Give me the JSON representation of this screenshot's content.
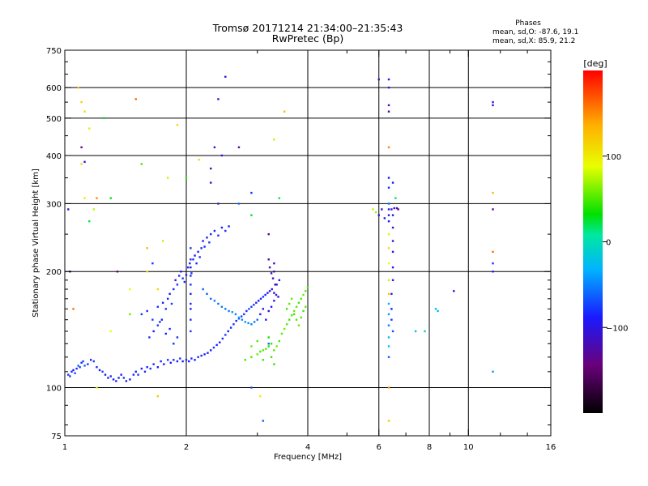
{
  "title_line1": "Tromsø 20171214 21:34:00–21:35:43",
  "title_line2": "RwPretec (Bp)",
  "stats": {
    "heading": "Phases",
    "line1": "mean, sd,O: -87.6, 19.1",
    "line2": "mean, sd,X:  85.9, 21.2"
  },
  "colorbar": {
    "title": "[deg]",
    "ticks": [
      {
        "value": 100,
        "label": "100"
      },
      {
        "value": 0,
        "label": "0"
      },
      {
        "value": -100,
        "label": "−100"
      }
    ],
    "range": [
      -200,
      200
    ]
  },
  "chart_data": {
    "type": "scatter",
    "xlabel": "Frequency [MHz]",
    "ylabel": "Stationary phase Virtual Height [km]",
    "x_scale": "log",
    "y_scale": "log",
    "xlim": [
      1,
      16
    ],
    "ylim": [
      75,
      750
    ],
    "grid": true,
    "xticks": [
      {
        "value": 1,
        "label": "1"
      },
      {
        "value": 2,
        "label": "2"
      },
      {
        "value": 4,
        "label": "4"
      },
      {
        "value": 6,
        "label": "6"
      },
      {
        "value": 8,
        "label": "8"
      },
      {
        "value": 10,
        "label": "10"
      },
      {
        "value": 16,
        "label": "16"
      }
    ],
    "x_minor_ticks": [
      3,
      5,
      7,
      9,
      12,
      14
    ],
    "x_gridlines": [
      2,
      4,
      6,
      8,
      10
    ],
    "yticks": [
      {
        "value": 75,
        "label": "75"
      },
      {
        "value": 100,
        "label": "100"
      },
      {
        "value": 200,
        "label": "200"
      },
      {
        "value": 300,
        "label": "300"
      },
      {
        "value": 400,
        "label": "400"
      },
      {
        "value": 500,
        "label": "500"
      },
      {
        "value": 600,
        "label": "600"
      },
      {
        "value": 750,
        "label": "750"
      }
    ],
    "y_minor_ticks": [
      80,
      90,
      110,
      120,
      130,
      140,
      150,
      160,
      170,
      180,
      190,
      250,
      350,
      450,
      550,
      650,
      700
    ],
    "y_gridlines": [
      100,
      200,
      300,
      400,
      500,
      600
    ],
    "color_scale": "phase in deg, rainbow from -200 (black) to 200 (red)",
    "points": [
      [
        1.02,
        108,
        -80
      ],
      [
        1.03,
        107,
        -75
      ],
      [
        1.04,
        110,
        -85
      ],
      [
        1.05,
        111,
        -90
      ],
      [
        1.06,
        109,
        -70
      ],
      [
        1.07,
        112,
        -80
      ],
      [
        1.08,
        114,
        -60
      ],
      [
        1.09,
        113,
        -75
      ],
      [
        1.1,
        116,
        -85
      ],
      [
        1.11,
        117,
        -70
      ],
      [
        1.12,
        114,
        -60
      ],
      [
        1.14,
        115,
        -80
      ],
      [
        1.16,
        118,
        -90
      ],
      [
        1.18,
        117,
        -75
      ],
      [
        1.2,
        113,
        -85
      ],
      [
        1.22,
        111,
        -90
      ],
      [
        1.24,
        110,
        -80
      ],
      [
        1.26,
        108,
        -95
      ],
      [
        1.28,
        106,
        -90
      ],
      [
        1.3,
        107,
        -85
      ],
      [
        1.32,
        105,
        -90
      ],
      [
        1.34,
        104,
        -100
      ],
      [
        1.36,
        106,
        -85
      ],
      [
        1.38,
        108,
        -90
      ],
      [
        1.4,
        106,
        -80
      ],
      [
        1.42,
        104,
        -95
      ],
      [
        1.45,
        105,
        -90
      ],
      [
        1.48,
        108,
        -85
      ],
      [
        1.5,
        110,
        -90
      ],
      [
        1.52,
        108,
        -80
      ],
      [
        1.55,
        112,
        -95
      ],
      [
        1.58,
        110,
        -85
      ],
      [
        1.6,
        113,
        -90
      ],
      [
        1.63,
        112,
        -80
      ],
      [
        1.66,
        115,
        -85
      ],
      [
        1.7,
        113,
        -90
      ],
      [
        1.73,
        117,
        -85
      ],
      [
        1.76,
        115,
        -95
      ],
      [
        1.8,
        118,
        -80
      ],
      [
        1.83,
        116,
        -90
      ],
      [
        1.86,
        118,
        -85
      ],
      [
        1.9,
        117,
        -90
      ],
      [
        1.93,
        119,
        -80
      ],
      [
        1.96,
        117,
        -90
      ],
      [
        2.0,
        118,
        -85
      ],
      [
        2.03,
        117,
        -90
      ],
      [
        2.06,
        119,
        -85
      ],
      [
        2.1,
        118,
        -90
      ],
      [
        2.14,
        120,
        -80
      ],
      [
        2.18,
        121,
        -85
      ],
      [
        2.22,
        122,
        -90
      ],
      [
        2.26,
        123,
        -85
      ],
      [
        2.3,
        125,
        -90
      ],
      [
        2.34,
        127,
        -80
      ],
      [
        2.38,
        129,
        -85
      ],
      [
        2.42,
        131,
        -90
      ],
      [
        2.46,
        134,
        -85
      ],
      [
        2.5,
        137,
        -80
      ],
      [
        2.54,
        140,
        -90
      ],
      [
        2.58,
        143,
        -85
      ],
      [
        2.62,
        146,
        -80
      ],
      [
        2.66,
        149,
        -90
      ],
      [
        2.7,
        151,
        -70
      ],
      [
        2.74,
        153,
        -75
      ],
      [
        2.78,
        155,
        -80
      ],
      [
        2.82,
        158,
        -85
      ],
      [
        2.86,
        160,
        -70
      ],
      [
        2.9,
        162,
        -75
      ],
      [
        2.94,
        164,
        -80
      ],
      [
        2.98,
        166,
        -85
      ],
      [
        3.02,
        168,
        -90
      ],
      [
        3.06,
        170,
        -85
      ],
      [
        3.1,
        172,
        -80
      ],
      [
        3.14,
        174,
        -90
      ],
      [
        3.18,
        176,
        -95
      ],
      [
        3.22,
        178,
        -100
      ],
      [
        3.26,
        180,
        -95
      ],
      [
        3.3,
        176,
        -100
      ],
      [
        3.34,
        174,
        -110
      ],
      [
        3.38,
        172,
        -105
      ],
      [
        1.55,
        155,
        -80
      ],
      [
        1.6,
        158,
        -85
      ],
      [
        1.65,
        150,
        -75
      ],
      [
        1.7,
        162,
        -80
      ],
      [
        1.72,
        148,
        -85
      ],
      [
        1.75,
        166,
        -90
      ],
      [
        1.78,
        160,
        -80
      ],
      [
        1.8,
        170,
        -85
      ],
      [
        1.82,
        175,
        -90
      ],
      [
        1.84,
        165,
        -80
      ],
      [
        1.86,
        180,
        -85
      ],
      [
        1.88,
        190,
        -90
      ],
      [
        1.9,
        185,
        -80
      ],
      [
        1.92,
        195,
        -85
      ],
      [
        1.94,
        200,
        -90
      ],
      [
        1.96,
        192,
        -80
      ],
      [
        1.98,
        188,
        -85
      ],
      [
        2.0,
        196,
        -90
      ],
      [
        2.02,
        205,
        -85
      ],
      [
        2.04,
        210,
        -90
      ],
      [
        2.06,
        198,
        -80
      ],
      [
        2.08,
        215,
        -85
      ],
      [
        2.1,
        220,
        -90
      ],
      [
        2.12,
        210,
        -85
      ],
      [
        2.14,
        225,
        -90
      ],
      [
        2.16,
        218,
        -80
      ],
      [
        2.18,
        230,
        -85
      ],
      [
        2.2,
        240,
        -90
      ],
      [
        2.22,
        232,
        -85
      ],
      [
        2.25,
        245,
        -90
      ],
      [
        2.28,
        238,
        -80
      ],
      [
        2.3,
        250,
        -85
      ],
      [
        2.35,
        255,
        -90
      ],
      [
        2.4,
        248,
        -85
      ],
      [
        2.45,
        260,
        -90
      ],
      [
        2.5,
        255,
        -85
      ],
      [
        2.55,
        262,
        -90
      ],
      [
        2.2,
        180,
        -60
      ],
      [
        2.25,
        175,
        -65
      ],
      [
        2.3,
        170,
        -60
      ],
      [
        2.35,
        168,
        -55
      ],
      [
        2.4,
        165,
        -60
      ],
      [
        2.45,
        162,
        -50
      ],
      [
        2.5,
        160,
        -55
      ],
      [
        2.55,
        158,
        -50
      ],
      [
        2.6,
        157,
        -45
      ],
      [
        2.65,
        155,
        -50
      ],
      [
        2.7,
        152,
        -40
      ],
      [
        2.75,
        150,
        -45
      ],
      [
        2.8,
        148,
        -40
      ],
      [
        2.85,
        147,
        -45
      ],
      [
        2.9,
        146,
        -50
      ],
      [
        2.95,
        148,
        -55
      ],
      [
        3.0,
        150,
        -60
      ],
      [
        2.05,
        165,
        -85
      ],
      [
        2.05,
        175,
        -90
      ],
      [
        2.05,
        185,
        -80
      ],
      [
        2.05,
        195,
        -85
      ],
      [
        2.05,
        205,
        -90
      ],
      [
        2.05,
        215,
        -85
      ],
      [
        2.05,
        230,
        -80
      ],
      [
        2.05,
        160,
        -90
      ],
      [
        2.05,
        150,
        -85
      ],
      [
        2.05,
        140,
        -80
      ],
      [
        1.62,
        135,
        -85
      ],
      [
        1.66,
        140,
        -90
      ],
      [
        1.7,
        145,
        -80
      ],
      [
        1.74,
        150,
        -85
      ],
      [
        1.78,
        138,
        -90
      ],
      [
        1.82,
        142,
        -85
      ],
      [
        1.86,
        130,
        -80
      ],
      [
        1.9,
        135,
        -85
      ],
      [
        3.05,
        155,
        -90
      ],
      [
        3.1,
        160,
        -95
      ],
      [
        3.15,
        150,
        -90
      ],
      [
        3.2,
        158,
        -100
      ],
      [
        3.25,
        162,
        -95
      ],
      [
        3.3,
        168,
        -100
      ],
      [
        3.35,
        185,
        -105
      ],
      [
        3.4,
        190,
        -100
      ],
      [
        3.2,
        215,
        -120
      ],
      [
        3.22,
        205,
        -115
      ],
      [
        3.25,
        198,
        -110
      ],
      [
        3.28,
        192,
        -115
      ],
      [
        3.3,
        200,
        -120
      ],
      [
        3.3,
        210,
        -118
      ],
      [
        3.32,
        185,
        -110
      ],
      [
        2.8,
        118,
        50
      ],
      [
        2.9,
        120,
        55
      ],
      [
        3.0,
        122,
        60
      ],
      [
        3.05,
        124,
        50
      ],
      [
        3.1,
        125,
        55
      ],
      [
        3.15,
        126,
        60
      ],
      [
        3.2,
        128,
        40
      ],
      [
        3.25,
        130,
        45
      ],
      [
        3.3,
        125,
        55
      ],
      [
        3.35,
        128,
        60
      ],
      [
        3.4,
        132,
        50
      ],
      [
        3.45,
        138,
        55
      ],
      [
        3.5,
        142,
        60
      ],
      [
        3.55,
        146,
        55
      ],
      [
        3.6,
        150,
        50
      ],
      [
        3.65,
        154,
        55
      ],
      [
        3.7,
        158,
        60
      ],
      [
        3.75,
        162,
        55
      ],
      [
        3.8,
        166,
        50
      ],
      [
        3.85,
        170,
        55
      ],
      [
        3.9,
        174,
        60
      ],
      [
        3.95,
        178,
        55
      ],
      [
        4.0,
        182,
        50
      ],
      [
        3.55,
        160,
        50
      ],
      [
        3.6,
        165,
        55
      ],
      [
        3.65,
        170,
        60
      ],
      [
        3.7,
        155,
        50
      ],
      [
        3.75,
        150,
        55
      ],
      [
        3.8,
        145,
        60
      ],
      [
        3.85,
        152,
        55
      ],
      [
        3.9,
        158,
        50
      ],
      [
        3.95,
        162,
        55
      ],
      [
        3.2,
        135,
        40
      ],
      [
        3.25,
        120,
        50
      ],
      [
        3.3,
        115,
        45
      ],
      [
        2.9,
        128,
        60
      ],
      [
        3.0,
        132,
        55
      ],
      [
        3.1,
        118,
        50
      ],
      [
        6.35,
        630,
        -100
      ],
      [
        6.35,
        600,
        -95
      ],
      [
        6.35,
        540,
        -120
      ],
      [
        6.35,
        520,
        -130
      ],
      [
        6.35,
        420,
        150
      ],
      [
        6.35,
        350,
        -90
      ],
      [
        6.35,
        330,
        -80
      ],
      [
        6.35,
        300,
        -60
      ],
      [
        6.35,
        290,
        -100
      ],
      [
        6.35,
        280,
        -110
      ],
      [
        6.35,
        270,
        -90
      ],
      [
        6.35,
        250,
        100
      ],
      [
        6.35,
        230,
        110
      ],
      [
        6.35,
        210,
        90
      ],
      [
        6.35,
        190,
        80
      ],
      [
        6.35,
        175,
        120
      ],
      [
        6.35,
        165,
        -30
      ],
      [
        6.35,
        155,
        -40
      ],
      [
        6.35,
        145,
        -50
      ],
      [
        6.35,
        135,
        -30
      ],
      [
        6.35,
        128,
        -20
      ],
      [
        6.35,
        120,
        -60
      ],
      [
        6.35,
        100,
        140
      ],
      [
        6.35,
        82,
        120
      ],
      [
        6.45,
        290,
        -100
      ],
      [
        6.55,
        292,
        -110
      ],
      [
        6.65,
        292,
        -120
      ],
      [
        6.7,
        290,
        -130
      ],
      [
        6.6,
        310,
        20
      ],
      [
        6.5,
        340,
        -90
      ],
      [
        6.5,
        280,
        -95
      ],
      [
        6.5,
        260,
        -100
      ],
      [
        6.5,
        240,
        -110
      ],
      [
        6.5,
        225,
        -100
      ],
      [
        6.5,
        205,
        -90
      ],
      [
        6.5,
        190,
        -95
      ],
      [
        6.45,
        175,
        -100
      ],
      [
        6.45,
        160,
        -90
      ],
      [
        6.45,
        150,
        -80
      ],
      [
        6.5,
        140,
        -70
      ],
      [
        6.0,
        630,
        -110
      ],
      [
        6.1,
        290,
        -100
      ],
      [
        6.2,
        275,
        -90
      ],
      [
        5.8,
        290,
        80
      ],
      [
        5.9,
        285,
        70
      ],
      [
        6.0,
        280,
        -100
      ],
      [
        7.4,
        140,
        -20
      ],
      [
        7.8,
        140,
        -10
      ],
      [
        8.3,
        160,
        -20
      ],
      [
        8.4,
        158,
        -30
      ],
      [
        9.2,
        178,
        -100
      ],
      [
        11.5,
        550,
        -90
      ],
      [
        11.5,
        540,
        -110
      ],
      [
        11.5,
        320,
        130
      ],
      [
        11.5,
        290,
        -120
      ],
      [
        11.5,
        225,
        160
      ],
      [
        11.5,
        210,
        -80
      ],
      [
        11.5,
        200,
        -95
      ],
      [
        11.5,
        110,
        -40
      ],
      [
        1.02,
        290,
        -110
      ],
      [
        1.03,
        200,
        -120
      ],
      [
        1.05,
        160,
        160
      ],
      [
        1.08,
        600,
        130
      ],
      [
        1.1,
        550,
        120
      ],
      [
        1.12,
        520,
        110
      ],
      [
        1.15,
        470,
        100
      ],
      [
        1.1,
        380,
        110
      ],
      [
        1.12,
        310,
        100
      ],
      [
        1.15,
        270,
        20
      ],
      [
        1.18,
        290,
        80
      ],
      [
        1.2,
        310,
        150
      ],
      [
        1.25,
        500,
        30
      ],
      [
        1.3,
        310,
        30
      ],
      [
        1.1,
        420,
        -130
      ],
      [
        1.12,
        385,
        -100
      ],
      [
        1.5,
        560,
        160
      ],
      [
        1.55,
        380,
        50
      ],
      [
        1.6,
        230,
        130
      ],
      [
        1.7,
        180,
        110
      ],
      [
        1.75,
        240,
        80
      ],
      [
        1.8,
        350,
        80
      ],
      [
        1.9,
        480,
        110
      ],
      [
        2.0,
        350,
        50
      ],
      [
        2.15,
        390,
        110
      ],
      [
        2.4,
        560,
        -100
      ],
      [
        2.5,
        640,
        -100
      ],
      [
        2.7,
        420,
        -120
      ],
      [
        2.7,
        300,
        -60
      ],
      [
        2.9,
        320,
        -80
      ],
      [
        2.9,
        280,
        30
      ],
      [
        3.05,
        95,
        100
      ],
      [
        3.1,
        82,
        -60
      ],
      [
        2.9,
        100,
        -70
      ],
      [
        3.2,
        130,
        -60
      ],
      [
        3.2,
        250,
        -130
      ],
      [
        3.4,
        310,
        20
      ],
      [
        3.5,
        520,
        130
      ],
      [
        3.3,
        440,
        80
      ],
      [
        1.7,
        95,
        120
      ],
      [
        1.2,
        100,
        100
      ],
      [
        1.35,
        200,
        -140
      ],
      [
        1.45,
        180,
        90
      ],
      [
        1.45,
        155,
        60
      ],
      [
        1.3,
        140,
        90
      ],
      [
        1.6,
        200,
        110
      ],
      [
        1.65,
        210,
        -80
      ],
      [
        2.35,
        420,
        -110
      ],
      [
        2.45,
        400,
        -100
      ],
      [
        2.3,
        340,
        -110
      ],
      [
        2.3,
        370,
        -120
      ],
      [
        2.4,
        300,
        -100
      ]
    ]
  }
}
